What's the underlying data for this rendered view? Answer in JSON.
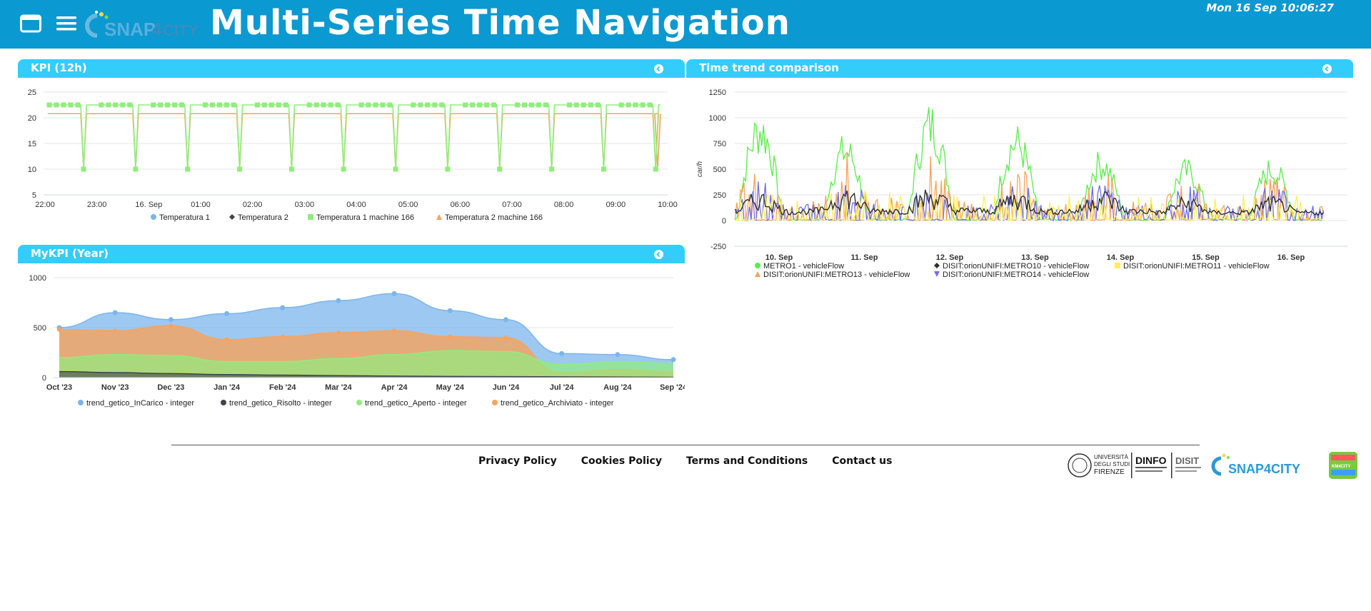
{
  "header": {
    "title": "Multi-Series Time Navigation",
    "clock": "Mon 16 Sep 10:06:27",
    "logo_text_snap": "SNAP",
    "logo_text_4": "4",
    "logo_text_city": "CITY",
    "colors": {
      "bar": "#0a99d0",
      "widget_header": "#32cdfb"
    }
  },
  "widgets": {
    "kpi": {
      "title": "KPI (12h)"
    },
    "mykpi": {
      "title": "MyKPI (Year)"
    },
    "trend": {
      "title": "Time trend comparison"
    }
  },
  "footer": {
    "links": [
      "Privacy Policy",
      "Cookies Policy",
      "Terms and Conditions",
      "Contact us"
    ],
    "logo_unifi": [
      "UNIVERSITÀ",
      "DEGLI STUDI",
      "FIRENZE"
    ],
    "logo_dinfo": "DINFO",
    "logo_disit": "DISIT",
    "logo_snap_city": "SNAP4CITY",
    "logo_km4city": "KM4CITY"
  },
  "chart_data": [
    {
      "type": "line",
      "name": "kpi",
      "x_labels": [
        "22:00",
        "23:00",
        "16. Sep",
        "01:00",
        "02:00",
        "03:00",
        "04:00",
        "05:00",
        "06:00",
        "07:00",
        "08:00",
        "09:00",
        "10:00"
      ],
      "ylim": [
        5,
        25
      ],
      "y_ticks": [
        25,
        20,
        15,
        10,
        5
      ],
      "legend": "bottom",
      "series": [
        {
          "name": "Temperatura 1",
          "color": "#7cb5ec",
          "marker": "circle",
          "values": []
        },
        {
          "name": "Temperatura 2",
          "color": "#434348",
          "marker": "diamond",
          "values": []
        },
        {
          "name": "Temperatura 1 machine 166",
          "color": "#90ed7d",
          "marker": "square",
          "high": 22.5,
          "low": 10
        },
        {
          "name": "Temperatura 2 machine 166",
          "color": "#f7a35c",
          "marker": "triangle",
          "high": 20.8,
          "low": 10.2
        }
      ]
    },
    {
      "type": "area",
      "name": "mykpi",
      "categories": [
        "Oct '23",
        "Nov '23",
        "Dec '23",
        "Jan '24",
        "Feb '24",
        "Mar '24",
        "Apr '24",
        "May '24",
        "Jun '24",
        "Jul '24",
        "Aug '24",
        "Sep '24"
      ],
      "ylim": [
        0,
        1000
      ],
      "y_ticks": [
        1000,
        500,
        0
      ],
      "legend": "bottom",
      "series": [
        {
          "name": "trend_getico_InCarico - integer",
          "color": "#7cb5ec",
          "values": [
            500,
            650,
            580,
            640,
            700,
            770,
            840,
            670,
            580,
            240,
            230,
            180
          ]
        },
        {
          "name": "trend_getico_Risolto - integer",
          "color": "#434348",
          "values": [
            60,
            50,
            40,
            30,
            25,
            20,
            15,
            12,
            10,
            8,
            6,
            4
          ]
        },
        {
          "name": "trend_getico_Aperto - integer",
          "color": "#90ed7d",
          "values": [
            200,
            230,
            220,
            160,
            160,
            190,
            230,
            270,
            260,
            130,
            160,
            140
          ]
        },
        {
          "name": "trend_getico_Archiviato - integer",
          "color": "#f7a35c",
          "values": [
            480,
            470,
            520,
            380,
            410,
            450,
            470,
            410,
            400,
            50,
            80,
            60
          ]
        }
      ]
    },
    {
      "type": "line",
      "name": "trend",
      "x_labels": [
        "10. Sep",
        "11. Sep",
        "12. Sep",
        "13. Sep",
        "14. Sep",
        "15. Sep",
        "16. Sep"
      ],
      "ylim": [
        -250,
        1250
      ],
      "y_ticks": [
        1250,
        1000,
        750,
        500,
        250,
        0,
        -250
      ],
      "ylabel": "car/h",
      "legend": "bottom",
      "series": [
        {
          "name": "METRO1 - vehicleFlow",
          "color": "#58ee48",
          "marker": "circle",
          "peaks": [
            1120,
            860,
            1180,
            960,
            700,
            610,
            630
          ]
        },
        {
          "name": "DISIT:orionUNIFI:METRO10 - vehicleFlow",
          "color": "#303030",
          "marker": "diamond",
          "peaks": [
            250,
            300,
            300,
            270,
            280,
            200,
            200
          ]
        },
        {
          "name": "DISIT:orionUNIFI:METRO11 - vehicleFlow",
          "color": "#ffee58",
          "marker": "square",
          "peaks": [
            300,
            320,
            250,
            250,
            240,
            220,
            260
          ]
        },
        {
          "name": "DISIT:orionUNIFI:METRO13 - vehicleFlow",
          "color": "#f7a35c",
          "marker": "triangle",
          "peaks": [
            620,
            750,
            650,
            560,
            640,
            500,
            530
          ]
        },
        {
          "name": "DISIT:orionUNIFI:METRO14 - vehicleFlow",
          "color": "#7070e8",
          "marker": "triangle-down",
          "peaks": [
            400,
            450,
            420,
            400,
            380,
            350,
            360
          ]
        }
      ]
    }
  ]
}
